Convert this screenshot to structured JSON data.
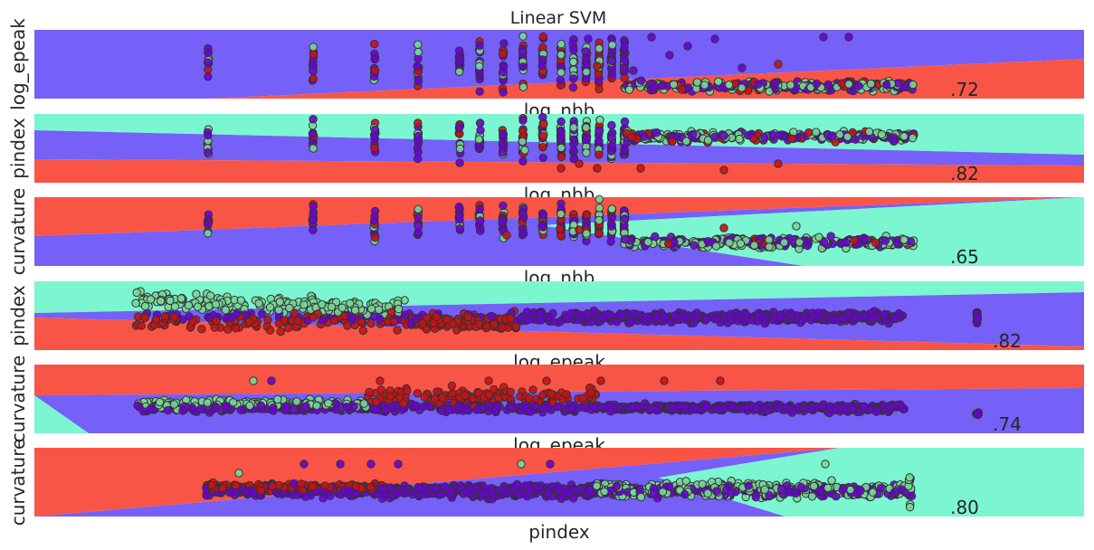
{
  "title": "Linear SVM",
  "colors": {
    "purple": "#7560f8",
    "red": "#f95547",
    "green": "#7cf5d1",
    "point_purple": "#6a00d8",
    "point_red": "#cc1111",
    "point_green": "#78d898",
    "point_edge": "#333333"
  },
  "chart_data": [
    {
      "type": "scatter",
      "xlabel": "log_nbb",
      "ylabel": "log_epeak",
      "score": ".72",
      "regions": {
        "top": "purple",
        "bottom": "red"
      },
      "series": [
        {
          "class": "purple"
        },
        {
          "class": "red"
        },
        {
          "class": "green"
        }
      ]
    },
    {
      "type": "scatter",
      "xlabel": "log_nbb",
      "ylabel": "pindex",
      "score": ".82",
      "regions": {
        "top": "green",
        "middle": "purple",
        "bottom": "red"
      },
      "series": [
        {
          "class": "purple"
        },
        {
          "class": "red"
        },
        {
          "class": "green"
        }
      ]
    },
    {
      "type": "scatter",
      "xlabel": "log_nbb",
      "ylabel": "curvature",
      "score": ".65",
      "regions": {
        "top": "red",
        "middle": "purple",
        "right": "green"
      },
      "series": [
        {
          "class": "purple"
        },
        {
          "class": "red"
        },
        {
          "class": "green"
        }
      ]
    },
    {
      "type": "scatter",
      "xlabel": "log_epeak",
      "ylabel": "pindex",
      "score": ".82",
      "regions": {
        "top": "green",
        "middle": "purple",
        "bottom": "red"
      },
      "series": [
        {
          "class": "purple"
        },
        {
          "class": "red"
        },
        {
          "class": "green"
        }
      ]
    },
    {
      "type": "scatter",
      "xlabel": "log_epeak",
      "ylabel": "curvature",
      "score": ".74",
      "regions": {
        "top": "red",
        "middle": "purple",
        "bottom": "green"
      },
      "series": [
        {
          "class": "purple"
        },
        {
          "class": "red"
        },
        {
          "class": "green"
        }
      ]
    },
    {
      "type": "scatter",
      "xlabel": "pindex",
      "ylabel": "curvature",
      "score": ".80",
      "regions": {
        "top": "red",
        "middle": "purple",
        "right": "green"
      },
      "series": [
        {
          "class": "purple"
        },
        {
          "class": "red"
        },
        {
          "class": "green"
        }
      ]
    }
  ]
}
